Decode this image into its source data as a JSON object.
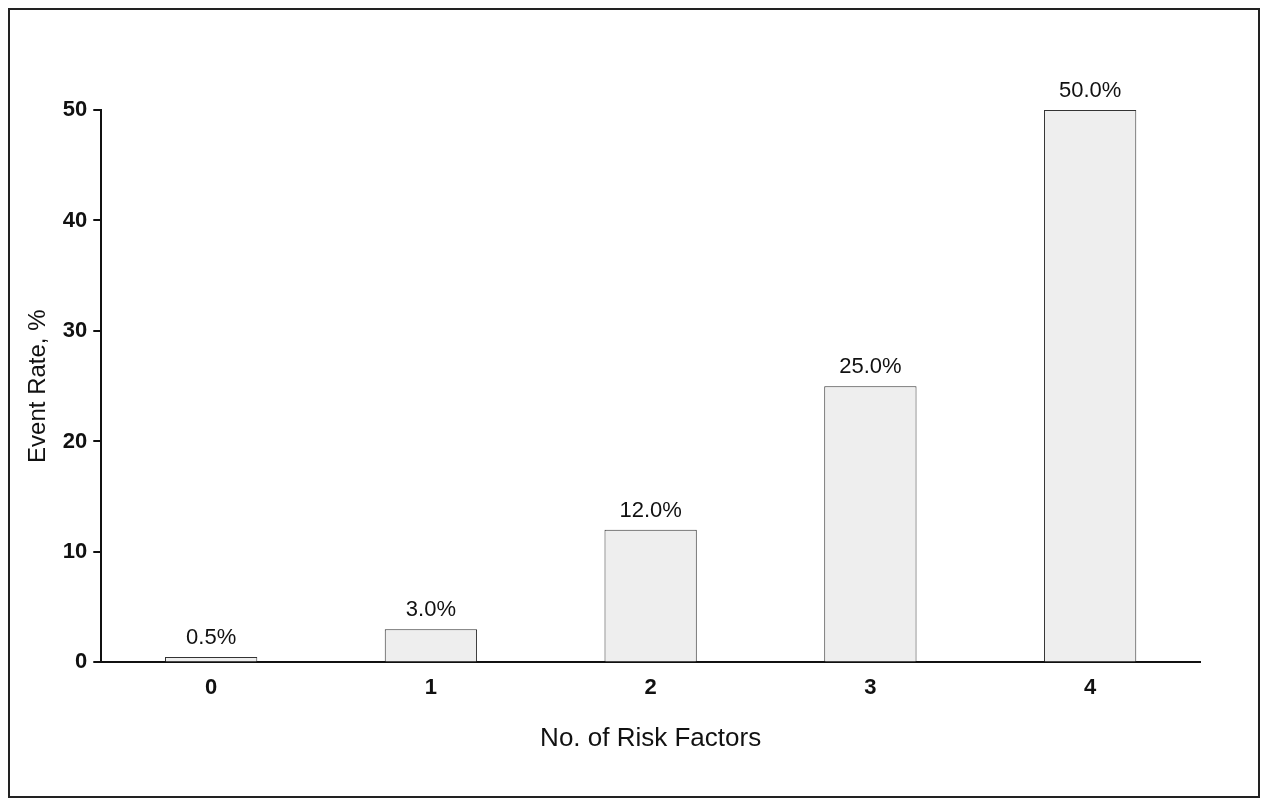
{
  "chart_data": {
    "type": "bar",
    "xlabel": "No. of Risk Factors",
    "ylabel": "Event Rate, %",
    "categories": [
      "0",
      "1",
      "2",
      "3",
      "4"
    ],
    "values": [
      0.5,
      3.0,
      12.0,
      25.0,
      50.0
    ],
    "value_labels": [
      "0.5%",
      "3.0%",
      "12.0%",
      "25.0%",
      "50.0%"
    ],
    "color": "#eeeeee",
    "ylim": [
      0,
      50
    ],
    "yticks": [
      0,
      10,
      20,
      30,
      40,
      50
    ]
  }
}
